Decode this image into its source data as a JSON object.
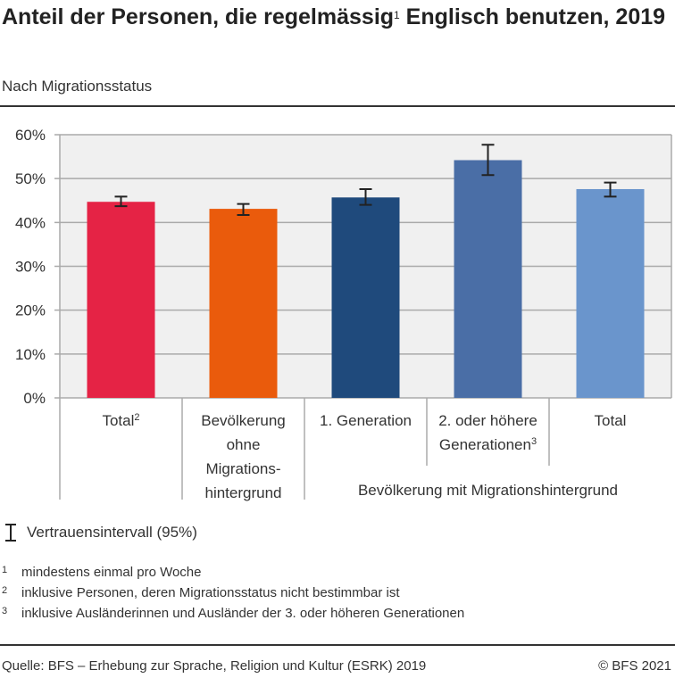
{
  "title": "Anteil der Personen, die regelmässig",
  "title_sup": "1",
  "title_rest": " Englisch benutzen, 2019",
  "subtitle": "Nach Migrationsstatus",
  "chart_data": {
    "type": "bar",
    "categories": [
      "Total²",
      "Bevölkerung ohne Migrations-hintergrund",
      "1. Generation",
      "2. oder höhere Generationen³",
      "Total"
    ],
    "category_lines": [
      [
        "Total",
        "2"
      ],
      [
        "Bevölkerung",
        "ohne",
        "Migrations-",
        "hintergrund"
      ],
      [
        "1. Generation"
      ],
      [
        "2. oder höhere",
        "Generationen",
        "3"
      ],
      [
        "Total"
      ]
    ],
    "group_label": "Bevölkerung mit Migrationshintergrund",
    "values": [
      44.7,
      43.1,
      45.7,
      54.2,
      47.6
    ],
    "ci_low": [
      43.7,
      41.7,
      44.0,
      50.8,
      45.9
    ],
    "ci_high": [
      45.9,
      44.2,
      47.6,
      57.7,
      49.1
    ],
    "colors": [
      "#e52345",
      "#ea5b0c",
      "#1f4a7c",
      "#4a6ea6",
      "#6a95cc"
    ],
    "ylim": [
      0,
      60
    ],
    "yticks": [
      "0%",
      "10%",
      "20%",
      "30%",
      "40%",
      "50%",
      "60%"
    ],
    "grid": true,
    "plot_background": "#f0f0f0"
  },
  "legend": {
    "label": "Vertrauensintervall (95%)"
  },
  "footnotes": [
    {
      "n": "1",
      "text": "mindestens einmal pro Woche"
    },
    {
      "n": "2",
      "text": "inklusive Personen, deren Migrationsstatus nicht bestimmbar ist"
    },
    {
      "n": "3",
      "text": "inklusive Ausländerinnen und Ausländer der 3. oder höheren Generationen"
    }
  ],
  "source": "Quelle: BFS – Erhebung zur Sprache, Religion und Kultur (ESRK) 2019",
  "copyright": "© BFS 2021"
}
